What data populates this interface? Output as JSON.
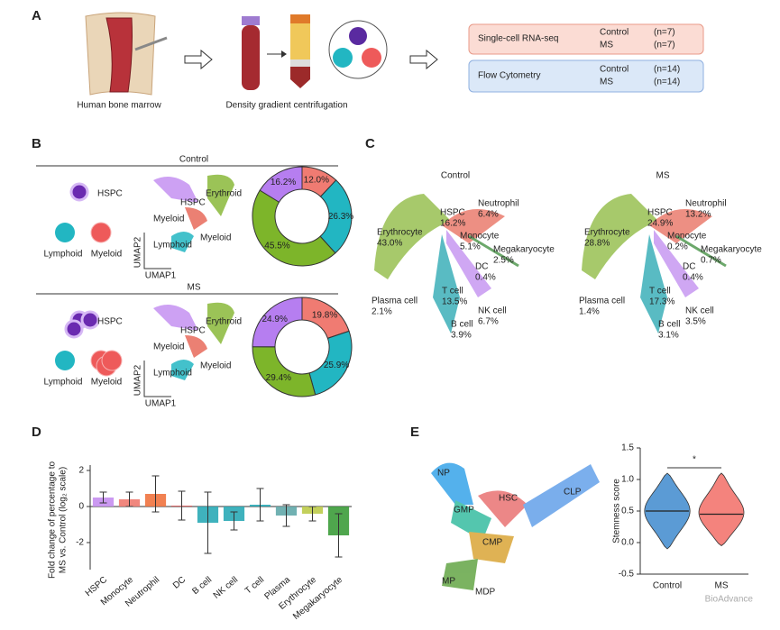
{
  "figure": {
    "A": {
      "label": "A",
      "captions": [
        "Human bone marrow",
        "Density gradient centrifugation"
      ],
      "boxes": [
        {
          "title": "Single-cell RNA-seq",
          "rows": [
            [
              "Control",
              "(n=7)"
            ],
            [
              "MS",
              "(n=7)"
            ]
          ]
        },
        {
          "title": "Flow Cytometry",
          "rows": [
            [
              "Control",
              "(n=14)"
            ],
            [
              "MS",
              "(n=14)"
            ]
          ]
        }
      ]
    },
    "B": {
      "label": "B",
      "groups": [
        {
          "title": "Control",
          "cells": [
            "HSPC",
            "Lymphoid",
            "Myeloid"
          ],
          "umap": [
            "HSPC",
            "Erythroid",
            "Myeloid",
            "Lymphoid",
            "Myeloid"
          ],
          "axes": [
            "UMAP2",
            "UMAP1"
          ]
        },
        {
          "title": "MS",
          "cells": [
            "HSPC",
            "Lymphoid",
            "Myeloid"
          ],
          "umap": [
            "HSPC",
            "Erythroid",
            "Myeloid",
            "Lymphoid",
            "Myeloid"
          ],
          "axes": [
            "UMAP2",
            "UMAP1"
          ]
        }
      ]
    },
    "C": {
      "label": "C",
      "groups": [
        {
          "title": "Control",
          "labels": [
            [
              "Erythrocyte",
              "43.0%"
            ],
            [
              "HSPC",
              "16.2%"
            ],
            [
              "Neutrophil",
              "6.4%"
            ],
            [
              "Monocyte",
              "5.1%"
            ],
            [
              "Megakaryocyte",
              "2.5%"
            ],
            [
              "DC",
              "0.4%"
            ],
            [
              "T cell",
              "13.5%"
            ],
            [
              "NK cell",
              "6.7%"
            ],
            [
              "B cell",
              "3.9%"
            ],
            [
              "Plasma cell",
              "2.1%"
            ]
          ]
        },
        {
          "title": "MS",
          "labels": [
            [
              "Erythrocyte",
              "28.8%"
            ],
            [
              "HSPC",
              "24.9%"
            ],
            [
              "Neutrophil",
              "13.2%"
            ],
            [
              "Monocyte",
              "0.2%"
            ],
            [
              "Megakaryocyte",
              "0.7%"
            ],
            [
              "DC",
              "0.4%"
            ],
            [
              "T cell",
              "17.3%"
            ],
            [
              "NK cell",
              "3.5%"
            ],
            [
              "B cell",
              "3.1%"
            ],
            [
              "Plasma cell",
              "1.4%"
            ]
          ]
        }
      ]
    },
    "D": {
      "label": "D"
    },
    "E": {
      "label": "E",
      "umap": [
        "NP",
        "GMP",
        "HSC",
        "CLP",
        "CMP",
        "MP",
        "MDP"
      ]
    },
    "watermark": "BioAdvance"
  },
  "chart_data": [
    {
      "type": "pie",
      "donut": true,
      "values": [
        12.0,
        26.3,
        45.5,
        16.2
      ],
      "value_labels": [
        "12.0%",
        "26.3%",
        "45.5%",
        "16.2%"
      ],
      "colors": [
        "#f07b72",
        "#22b6c2",
        "#7db52a",
        "#b67ef0"
      ]
    },
    {
      "type": "pie",
      "donut": true,
      "values": [
        19.8,
        25.9,
        29.4,
        24.9
      ],
      "value_labels": [
        "19.8%",
        "25.9%",
        "29.4%",
        "24.9%"
      ],
      "colors": [
        "#f07b72",
        "#22b6c2",
        "#7db52a",
        "#b67ef0"
      ]
    },
    {
      "type": "bar",
      "categories": [
        "HSPC",
        "Monocyte",
        "Neutrophil",
        "DC",
        "B cell",
        "NK cell",
        "T cell",
        "Plasma",
        "Erythrocyte",
        "Megakaryocyte"
      ],
      "values": [
        0.5,
        0.4,
        0.7,
        0.05,
        -0.9,
        -0.8,
        0.1,
        -0.5,
        -0.4,
        -1.6
      ],
      "errors": [
        0.3,
        0.4,
        1.0,
        0.8,
        1.7,
        0.5,
        0.9,
        0.6,
        0.4,
        1.2
      ],
      "colors": [
        "#c58ef0",
        "#ee7a70",
        "#f0733f",
        "#e06060",
        "#2aaab6",
        "#2aaab6",
        "#2aaab6",
        "#62a9aa",
        "#bccb4a",
        "#3c9c3a"
      ],
      "ylabel": [
        "Fold change of percentage to",
        "MS vs. Control (log₂ scale)"
      ],
      "ylim": [
        -3.5,
        2
      ],
      "yticks": [
        -2,
        0,
        2
      ]
    },
    {
      "type": "violin",
      "categories": [
        "Control",
        "MS"
      ],
      "values": [
        0.5,
        0.45
      ],
      "mins": [
        -0.1,
        -0.05
      ],
      "maxs": [
        1.1,
        1.1
      ],
      "colors": [
        "#5b9bd5",
        "#f4837d"
      ],
      "ylabel": "Stemness score",
      "annotation": "*",
      "ylim": [
        -0.5,
        1.5
      ],
      "yticks": [
        -0.5,
        {
          "value": 0,
          "label": "0.0"
        },
        0.5,
        {
          "value": 1,
          "label": "1.0"
        },
        1.5
      ]
    }
  ]
}
